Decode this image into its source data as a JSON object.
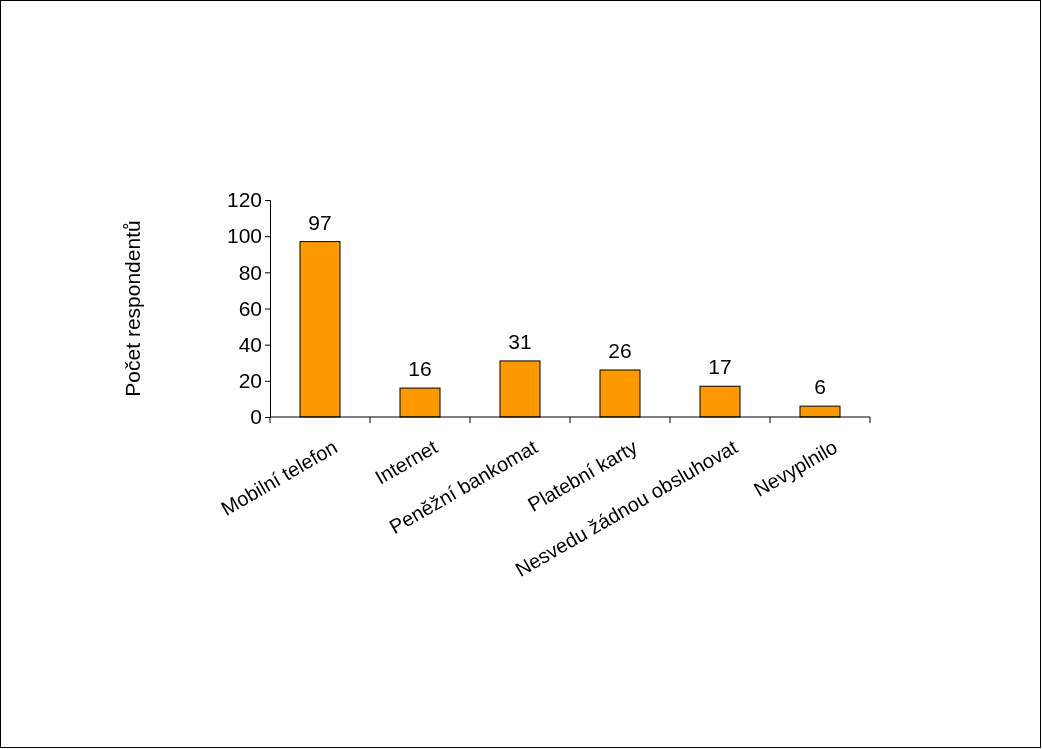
{
  "chart_data": {
    "type": "bar",
    "ylabel": "Počet respondentů",
    "categories": [
      "Mobilní telefon",
      "Internet",
      "Peněžní bankomat",
      "Platební karty",
      "Nesvedu žádnou obsluhovat",
      "Nevyplnilo"
    ],
    "values": [
      97,
      16,
      31,
      26,
      17,
      6
    ],
    "color": "#ff9900",
    "ylim": [
      0,
      120
    ],
    "yticks": [
      0,
      20,
      40,
      60,
      80,
      100,
      120
    ],
    "grid": false,
    "data_labels": true
  }
}
